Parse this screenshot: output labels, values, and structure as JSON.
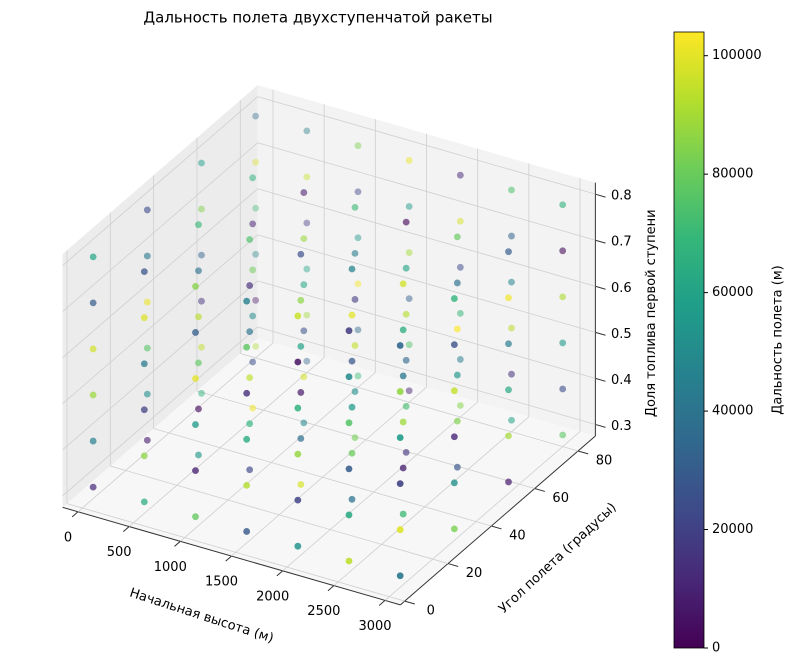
{
  "chart_data": {
    "type": "scatter3d",
    "title": "Дальность полета двухступенчатой ракеты",
    "xlabel": "Начальная высота (м)",
    "ylabel": "Угол полета (градусы)",
    "zlabel": "Доля топлива первой ступени",
    "colorbar_label": "Дальность полета (м)",
    "colormap": "viridis",
    "grid": true,
    "xlim": [
      -150,
      3150
    ],
    "xticks": [
      0,
      500,
      1000,
      1500,
      2000,
      2500,
      3000
    ],
    "ylim": [
      -2,
      88
    ],
    "yticks": [
      0,
      20,
      40,
      60,
      80
    ],
    "zlim": [
      0.275,
      0.825
    ],
    "zticks": [
      0.3,
      0.4,
      0.5,
      0.6,
      0.7,
      0.8
    ],
    "clim": [
      0,
      104000
    ],
    "cticks": [
      0,
      20000,
      40000,
      60000,
      80000,
      100000
    ],
    "x": [
      0,
      0,
      0,
      0,
      0,
      0,
      0,
      0,
      0,
      0,
      0,
      0,
      0,
      0,
      0,
      0,
      0,
      0,
      0,
      0,
      0,
      0,
      0,
      0,
      500,
      500,
      500,
      500,
      500,
      500,
      500,
      500,
      500,
      500,
      500,
      500,
      500,
      500,
      500,
      500,
      500,
      500,
      500,
      500,
      500,
      500,
      500,
      500,
      1000,
      1000,
      1000,
      1000,
      1000,
      1000,
      1000,
      1000,
      1000,
      1000,
      1000,
      1000,
      1000,
      1000,
      1000,
      1000,
      1000,
      1000,
      1000,
      1000,
      1000,
      1000,
      1000,
      1000,
      1500,
      1500,
      1500,
      1500,
      1500,
      1500,
      1500,
      1500,
      1500,
      1500,
      1500,
      1500,
      1500,
      1500,
      1500,
      1500,
      1500,
      1500,
      1500,
      1500,
      1500,
      1500,
      1500,
      1500,
      2000,
      2000,
      2000,
      2000,
      2000,
      2000,
      2000,
      2000,
      2000,
      2000,
      2000,
      2000,
      2000,
      2000,
      2000,
      2000,
      2000,
      2000,
      2000,
      2000,
      2000,
      2000,
      2000,
      2000,
      2500,
      2500,
      2500,
      2500,
      2500,
      2500,
      2500,
      2500,
      2500,
      2500,
      2500,
      2500,
      2500,
      2500,
      2500,
      2500,
      2500,
      2500,
      2500,
      2500,
      2500,
      2500,
      2500,
      2500,
      3000,
      3000,
      3000,
      3000,
      3000,
      3000,
      3000,
      3000,
      3000,
      3000,
      3000,
      3000,
      3000,
      3000,
      3000,
      3000,
      3000,
      3000,
      3000,
      3000,
      3000,
      3000,
      3000,
      3000
    ],
    "y": [
      5,
      5,
      5,
      5,
      5,
      5,
      30,
      30,
      30,
      30,
      30,
      30,
      55,
      55,
      55,
      55,
      55,
      55,
      80,
      80,
      80,
      80,
      80,
      80,
      5,
      5,
      5,
      5,
      5,
      5,
      30,
      30,
      30,
      30,
      30,
      30,
      55,
      55,
      55,
      55,
      55,
      55,
      80,
      80,
      80,
      80,
      80,
      80,
      5,
      5,
      5,
      5,
      5,
      5,
      30,
      30,
      30,
      30,
      30,
      30,
      55,
      55,
      55,
      55,
      55,
      55,
      80,
      80,
      80,
      80,
      80,
      80,
      5,
      5,
      5,
      5,
      5,
      5,
      30,
      30,
      30,
      30,
      30,
      30,
      55,
      55,
      55,
      55,
      55,
      55,
      80,
      80,
      80,
      80,
      80,
      80,
      5,
      5,
      5,
      5,
      5,
      5,
      30,
      30,
      30,
      30,
      30,
      30,
      55,
      55,
      55,
      55,
      55,
      55,
      80,
      80,
      80,
      80,
      80,
      80,
      5,
      5,
      5,
      5,
      5,
      5,
      30,
      30,
      30,
      30,
      30,
      30,
      55,
      55,
      55,
      55,
      55,
      55,
      80,
      80,
      80,
      80,
      80,
      80,
      5,
      5,
      5,
      5,
      5,
      5,
      30,
      30,
      30,
      30,
      30,
      30,
      55,
      55,
      55,
      55,
      55,
      55,
      80,
      80,
      80,
      80,
      80,
      80
    ],
    "z": [
      0.3,
      0.4,
      0.5,
      0.6,
      0.7,
      0.8,
      0.3,
      0.4,
      0.5,
      0.6,
      0.7,
      0.8,
      0.3,
      0.4,
      0.5,
      0.6,
      0.7,
      0.8,
      0.3,
      0.4,
      0.5,
      0.6,
      0.7,
      0.8,
      0.3,
      0.4,
      0.5,
      0.6,
      0.7,
      0.8,
      0.3,
      0.4,
      0.5,
      0.6,
      0.7,
      0.8,
      0.3,
      0.4,
      0.5,
      0.6,
      0.7,
      0.8,
      0.3,
      0.4,
      0.5,
      0.6,
      0.7,
      0.8,
      0.3,
      0.4,
      0.5,
      0.6,
      0.7,
      0.8,
      0.3,
      0.4,
      0.5,
      0.6,
      0.7,
      0.8,
      0.3,
      0.4,
      0.5,
      0.6,
      0.7,
      0.8,
      0.3,
      0.4,
      0.5,
      0.6,
      0.7,
      0.8,
      0.3,
      0.4,
      0.5,
      0.6,
      0.7,
      0.8,
      0.3,
      0.4,
      0.5,
      0.6,
      0.7,
      0.8,
      0.3,
      0.4,
      0.5,
      0.6,
      0.7,
      0.8,
      0.3,
      0.4,
      0.5,
      0.6,
      0.7,
      0.8,
      0.3,
      0.4,
      0.5,
      0.6,
      0.7,
      0.8,
      0.3,
      0.4,
      0.5,
      0.6,
      0.7,
      0.8,
      0.3,
      0.4,
      0.5,
      0.6,
      0.7,
      0.8,
      0.3,
      0.4,
      0.5,
      0.6,
      0.7,
      0.8,
      0.3,
      0.4,
      0.5,
      0.6,
      0.7,
      0.8,
      0.3,
      0.4,
      0.5,
      0.6,
      0.7,
      0.8,
      0.3,
      0.4,
      0.5,
      0.6,
      0.7,
      0.8,
      0.3,
      0.4,
      0.5,
      0.6,
      0.7,
      0.8,
      0.3,
      0.4,
      0.5,
      0.6,
      0.7,
      0.8,
      0.3,
      0.4,
      0.5,
      0.6,
      0.7,
      0.8,
      0.3,
      0.4,
      0.5,
      0.6,
      0.7,
      0.8,
      0.3,
      0.4,
      0.5,
      0.6,
      0.7,
      0.8
    ],
    "c": [
      12000,
      45000,
      88000,
      97000,
      30000,
      61000,
      8000,
      52000,
      76000,
      101000,
      41000,
      23000,
      67000,
      95000,
      15000,
      33000,
      84000,
      58000,
      91000,
      5000,
      47000,
      72000,
      99000,
      36000,
      64000,
      86000,
      19000,
      42000,
      99000,
      27000,
      55000,
      3000,
      78000,
      93000,
      38000,
      70000,
      102000,
      24000,
      50000,
      81000,
      11000,
      66000,
      34000,
      89000,
      60000,
      17000,
      96000,
      45000,
      79000,
      9000,
      57000,
      100000,
      31000,
      85000,
      22000,
      68000,
      94000,
      40000,
      13000,
      74000,
      48000,
      97000,
      26000,
      62000,
      88000,
      7000,
      71000,
      36000,
      103000,
      54000,
      20000,
      83000,
      29000,
      92000,
      64000,
      14000,
      77000,
      46000,
      98000,
      37000,
      6000,
      59000,
      86000,
      25000,
      82000,
      51000,
      95000,
      18000,
      43000,
      70000,
      10000,
      75000,
      32000,
      90000,
      56000,
      101000,
      53000,
      21000,
      87000,
      66000,
      4000,
      96000,
      39000,
      80000,
      58000,
      28000,
      100000,
      47000,
      16000,
      73000,
      35000,
      92000,
      61000,
      2000,
      85000,
      44000,
      69000,
      23000,
      98000,
      12000,
      94000,
      63000,
      30000,
      76000,
      50000,
      18000,
      71000,
      9000,
      89000,
      42000,
      65000,
      97000,
      27000,
      84000,
      55000,
      104000,
      38000,
      79000,
      60000,
      15000,
      93000,
      48000,
      33000,
      74000,
      41000,
      99000,
      20000,
      58000,
      87000,
      35000,
      83000,
      52000,
      11000,
      95000,
      26000,
      68000,
      7000,
      90000,
      62000,
      44000,
      102000,
      31000,
      77000,
      24000,
      56000,
      91000,
      3000,
      67000
    ]
  }
}
